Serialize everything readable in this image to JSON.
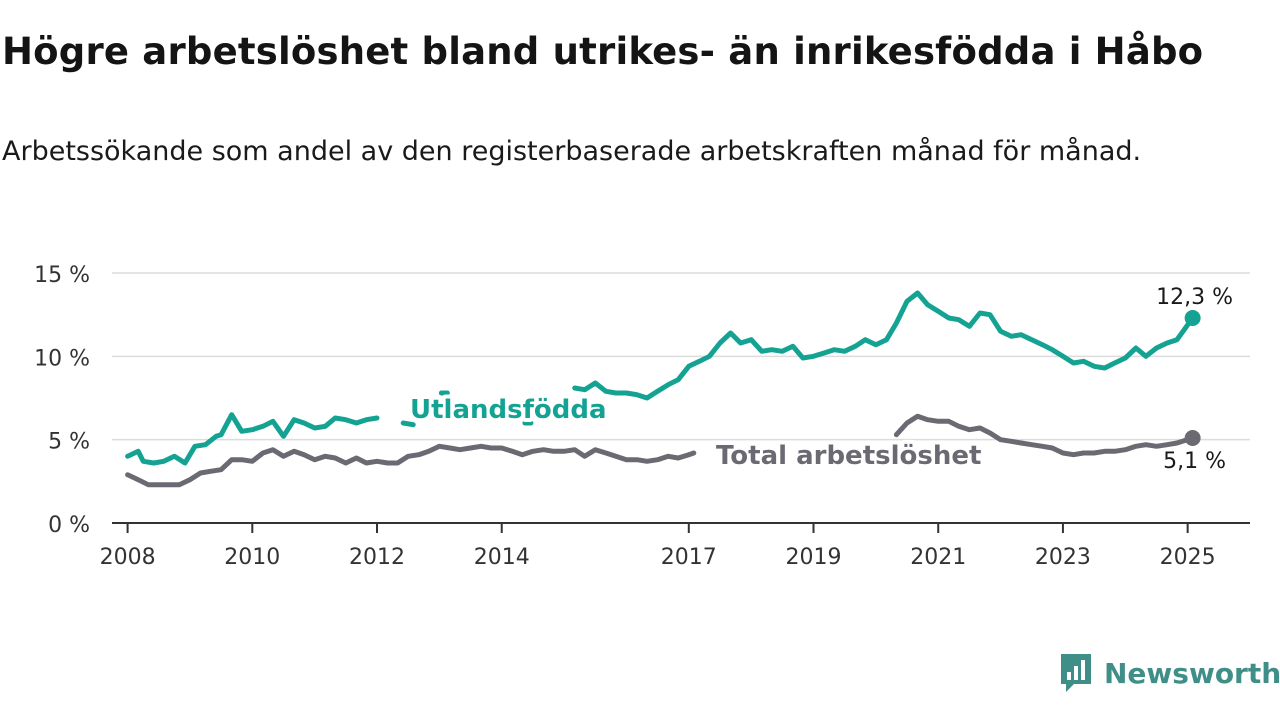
{
  "header": {
    "title": "Högre arbetslöshet bland utrikes- än inrikesfödda i Håbo",
    "subtitle": "Arbetssökande som andel av den registerbaserade arbetskraften månad för månad."
  },
  "brand": {
    "name": "Newsworthy",
    "icon": "newsworthy-logo-icon",
    "color": "#3f8f88"
  },
  "chart_data": {
    "type": "line",
    "title": "Högre arbetslöshet bland utrikes- än inrikesfödda i Håbo",
    "subtitle": "Arbetssökande som andel av den registerbaserade arbetskraften månad för månad.",
    "xlabel": "",
    "ylabel": "",
    "xlim": [
      2007.75,
      2026
    ],
    "ylim": [
      0,
      15
    ],
    "yticks": [
      0,
      5,
      10,
      15
    ],
    "ytick_labels": [
      "0 %",
      "5 %",
      "10 %",
      "15 %"
    ],
    "xticks": [
      2008,
      2010,
      2012,
      2014,
      2017,
      2019,
      2021,
      2023,
      2025
    ],
    "xtick_labels": [
      "2008",
      "2010",
      "2012",
      "2014",
      "2017",
      "2019",
      "2021",
      "2023",
      "2025"
    ],
    "grid": true,
    "series": [
      {
        "name": "Utlandsfödda",
        "color": "#14a393",
        "end_label": "12,3 %",
        "points": [
          [
            2008.0,
            4.0
          ],
          [
            2008.17,
            4.3
          ],
          [
            2008.25,
            3.7
          ],
          [
            2008.42,
            3.6
          ],
          [
            2008.58,
            3.7
          ],
          [
            2008.75,
            4.0
          ],
          [
            2008.92,
            3.6
          ],
          [
            2009.08,
            4.6
          ],
          [
            2009.25,
            4.7
          ],
          [
            2009.42,
            5.2
          ],
          [
            2009.5,
            5.3
          ],
          [
            2009.67,
            6.5
          ],
          [
            2009.83,
            5.5
          ],
          [
            2010.0,
            5.6
          ],
          [
            2010.17,
            5.8
          ],
          [
            2010.33,
            6.1
          ],
          [
            2010.5,
            5.2
          ],
          [
            2010.67,
            6.2
          ],
          [
            2010.83,
            6.0
          ],
          [
            2011.0,
            5.7
          ],
          [
            2011.17,
            5.8
          ],
          [
            2011.33,
            6.3
          ],
          [
            2011.5,
            6.2
          ],
          [
            2011.67,
            6.0
          ],
          [
            2011.83,
            6.2
          ],
          [
            2012.0,
            6.3
          ],
          [
            2012.42,
            6.0
          ],
          [
            2012.58,
            5.9
          ],
          [
            2013.08,
            7.8
          ],
          [
            2014.42,
            6.0
          ],
          [
            2015.17,
            8.1
          ],
          [
            2015.33,
            8.0
          ],
          [
            2015.5,
            8.4
          ],
          [
            2015.67,
            7.9
          ],
          [
            2015.83,
            7.8
          ],
          [
            2016.0,
            7.8
          ],
          [
            2016.17,
            7.7
          ],
          [
            2016.33,
            7.5
          ],
          [
            2016.5,
            7.9
          ],
          [
            2016.67,
            8.3
          ],
          [
            2016.83,
            8.6
          ],
          [
            2017.0,
            9.4
          ],
          [
            2017.17,
            9.7
          ],
          [
            2017.33,
            10.0
          ],
          [
            2017.5,
            10.8
          ],
          [
            2017.67,
            11.4
          ],
          [
            2017.83,
            10.8
          ],
          [
            2018.0,
            11.0
          ],
          [
            2018.17,
            10.3
          ],
          [
            2018.33,
            10.4
          ],
          [
            2018.5,
            10.3
          ],
          [
            2018.67,
            10.6
          ],
          [
            2018.83,
            9.9
          ],
          [
            2019.0,
            10.0
          ],
          [
            2019.17,
            10.2
          ],
          [
            2019.33,
            10.4
          ],
          [
            2019.5,
            10.3
          ],
          [
            2019.67,
            10.6
          ],
          [
            2019.83,
            11.0
          ],
          [
            2020.0,
            10.7
          ],
          [
            2020.17,
            11.0
          ],
          [
            2020.33,
            12.0
          ],
          [
            2020.5,
            13.3
          ],
          [
            2020.67,
            13.8
          ],
          [
            2020.83,
            13.1
          ],
          [
            2021.0,
            12.7
          ],
          [
            2021.17,
            12.3
          ],
          [
            2021.33,
            12.2
          ],
          [
            2021.5,
            11.8
          ],
          [
            2021.67,
            12.6
          ],
          [
            2021.83,
            12.5
          ],
          [
            2022.0,
            11.5
          ],
          [
            2022.17,
            11.2
          ],
          [
            2022.33,
            11.3
          ],
          [
            2022.5,
            11.0
          ],
          [
            2022.67,
            10.7
          ],
          [
            2022.83,
            10.4
          ],
          [
            2023.0,
            10.0
          ],
          [
            2023.17,
            9.6
          ],
          [
            2023.33,
            9.7
          ],
          [
            2023.5,
            9.4
          ],
          [
            2023.67,
            9.3
          ],
          [
            2023.83,
            9.6
          ],
          [
            2024.0,
            9.9
          ],
          [
            2024.17,
            10.5
          ],
          [
            2024.33,
            10.0
          ],
          [
            2024.5,
            10.5
          ],
          [
            2024.67,
            10.8
          ],
          [
            2024.83,
            11.0
          ],
          [
            2025.08,
            12.3
          ]
        ]
      },
      {
        "name": "Total arbetslöshet",
        "color": "#6b6a72",
        "end_label": "5,1 %",
        "points": [
          [
            2008.0,
            2.9
          ],
          [
            2008.17,
            2.6
          ],
          [
            2008.33,
            2.3
          ],
          [
            2008.5,
            2.3
          ],
          [
            2008.67,
            2.3
          ],
          [
            2008.83,
            2.3
          ],
          [
            2009.0,
            2.6
          ],
          [
            2009.17,
            3.0
          ],
          [
            2009.33,
            3.1
          ],
          [
            2009.5,
            3.2
          ],
          [
            2009.67,
            3.8
          ],
          [
            2009.83,
            3.8
          ],
          [
            2010.0,
            3.7
          ],
          [
            2010.17,
            4.2
          ],
          [
            2010.33,
            4.4
          ],
          [
            2010.5,
            4.0
          ],
          [
            2010.67,
            4.3
          ],
          [
            2010.83,
            4.1
          ],
          [
            2011.0,
            3.8
          ],
          [
            2011.17,
            4.0
          ],
          [
            2011.33,
            3.9
          ],
          [
            2011.5,
            3.6
          ],
          [
            2011.67,
            3.9
          ],
          [
            2011.83,
            3.6
          ],
          [
            2012.0,
            3.7
          ],
          [
            2012.17,
            3.6
          ],
          [
            2012.33,
            3.6
          ],
          [
            2012.5,
            4.0
          ],
          [
            2012.67,
            4.1
          ],
          [
            2012.83,
            4.3
          ],
          [
            2013.0,
            4.6
          ],
          [
            2013.17,
            4.5
          ],
          [
            2013.33,
            4.4
          ],
          [
            2013.5,
            4.5
          ],
          [
            2013.67,
            4.6
          ],
          [
            2013.83,
            4.5
          ],
          [
            2014.0,
            4.5
          ],
          [
            2014.17,
            4.3
          ],
          [
            2014.33,
            4.1
          ],
          [
            2014.5,
            4.3
          ],
          [
            2014.67,
            4.4
          ],
          [
            2014.83,
            4.3
          ],
          [
            2015.0,
            4.3
          ],
          [
            2015.17,
            4.4
          ],
          [
            2015.33,
            4.0
          ],
          [
            2015.5,
            4.4
          ],
          [
            2015.67,
            4.2
          ],
          [
            2015.83,
            4.0
          ],
          [
            2016.0,
            3.8
          ],
          [
            2016.17,
            3.8
          ],
          [
            2016.33,
            3.7
          ],
          [
            2016.5,
            3.8
          ],
          [
            2016.67,
            4.0
          ],
          [
            2016.83,
            3.9
          ],
          [
            2017.0,
            4.1
          ],
          [
            2017.08,
            4.2
          ],
          [
            2020.33,
            5.3
          ],
          [
            2020.5,
            6.0
          ],
          [
            2020.67,
            6.4
          ],
          [
            2020.83,
            6.2
          ],
          [
            2021.0,
            6.1
          ],
          [
            2021.17,
            6.1
          ],
          [
            2021.33,
            5.8
          ],
          [
            2021.5,
            5.6
          ],
          [
            2021.67,
            5.7
          ],
          [
            2021.83,
            5.4
          ],
          [
            2022.0,
            5.0
          ],
          [
            2022.17,
            4.9
          ],
          [
            2022.33,
            4.8
          ],
          [
            2022.5,
            4.7
          ],
          [
            2022.67,
            4.6
          ],
          [
            2022.83,
            4.5
          ],
          [
            2023.0,
            4.2
          ],
          [
            2023.17,
            4.1
          ],
          [
            2023.33,
            4.2
          ],
          [
            2023.5,
            4.2
          ],
          [
            2023.67,
            4.3
          ],
          [
            2023.83,
            4.3
          ],
          [
            2024.0,
            4.4
          ],
          [
            2024.17,
            4.6
          ],
          [
            2024.33,
            4.7
          ],
          [
            2024.5,
            4.6
          ],
          [
            2024.67,
            4.7
          ],
          [
            2024.83,
            4.8
          ],
          [
            2025.08,
            5.1
          ]
        ]
      }
    ],
    "gaps": {
      "Utlandsfödda": [
        [
          2012.0,
          2012.42
        ],
        [
          2012.58,
          2013.08
        ],
        [
          2013.08,
          2014.42
        ],
        [
          2014.42,
          2015.17
        ]
      ],
      "Total arbetslöshet": [
        [
          2017.08,
          2020.33
        ]
      ]
    },
    "annotations": [
      {
        "text": "Utlandsfödda",
        "series": "Utlandsfödda"
      },
      {
        "text": "Total arbetslöshet",
        "series": "Total arbetslöshet"
      }
    ]
  }
}
